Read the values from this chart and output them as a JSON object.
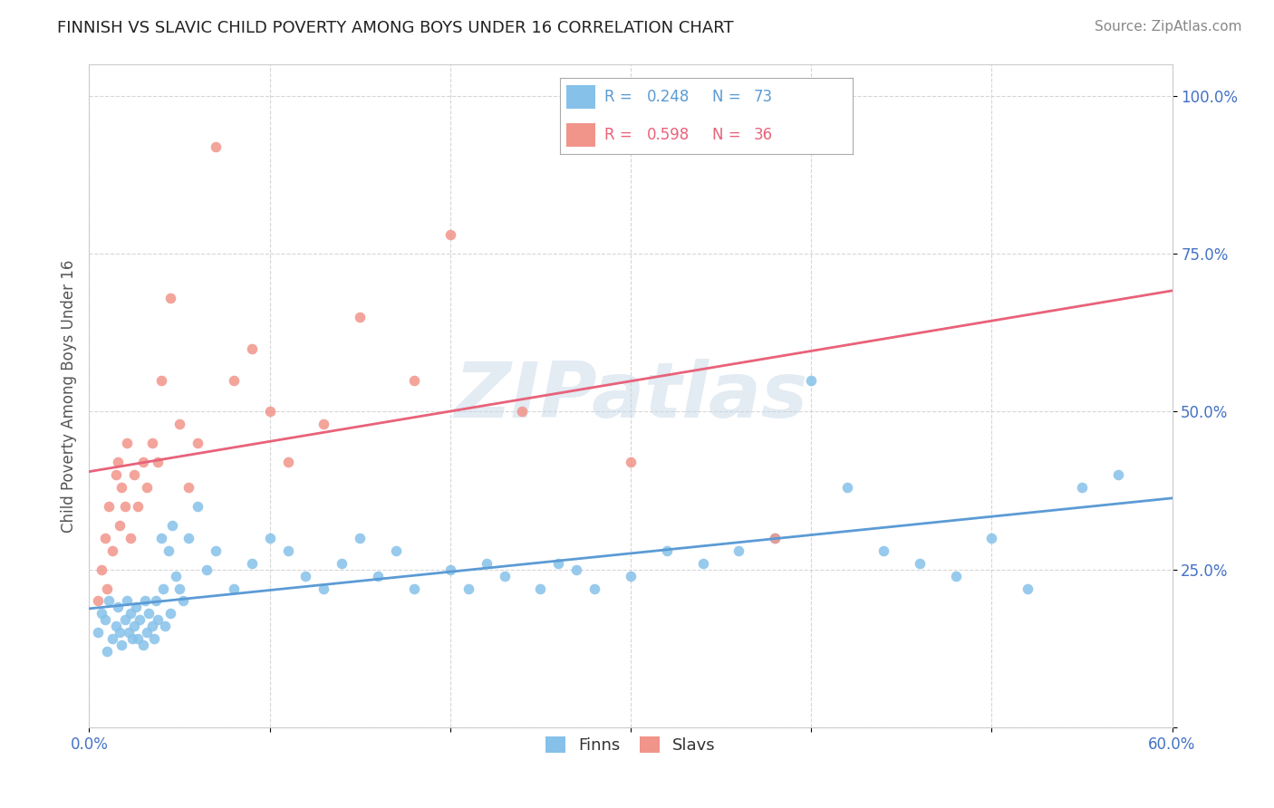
{
  "title": "FINNISH VS SLAVIC CHILD POVERTY AMONG BOYS UNDER 16 CORRELATION CHART",
  "source": "Source: ZipAtlas.com",
  "ylabel": "Child Poverty Among Boys Under 16",
  "xlim": [
    0.0,
    0.6
  ],
  "ylim": [
    0.0,
    1.05
  ],
  "xticks": [
    0.0,
    0.1,
    0.2,
    0.3,
    0.4,
    0.5,
    0.6
  ],
  "xticklabels": [
    "0.0%",
    "",
    "",
    "",
    "",
    "",
    "60.0%"
  ],
  "yticks": [
    0.0,
    0.25,
    0.5,
    0.75,
    1.0
  ],
  "yticklabels": [
    "",
    "25.0%",
    "50.0%",
    "75.0%",
    "100.0%"
  ],
  "finns_R": 0.248,
  "finns_N": 73,
  "slavs_R": 0.598,
  "slavs_N": 36,
  "finns_color": "#85c1e9",
  "slavs_color": "#f1948a",
  "finns_line_color": "#5b9bd5",
  "slavs_line_color": "#e8627a",
  "background_color": "#ffffff",
  "grid_color": "#cccccc",
  "title_color": "#222222",
  "axis_color": "#4472c4",
  "watermark": "ZIPatlas",
  "finns_x": [
    0.005,
    0.007,
    0.009,
    0.01,
    0.011,
    0.013,
    0.015,
    0.016,
    0.017,
    0.018,
    0.02,
    0.021,
    0.022,
    0.023,
    0.024,
    0.025,
    0.026,
    0.027,
    0.028,
    0.03,
    0.031,
    0.032,
    0.033,
    0.035,
    0.036,
    0.037,
    0.038,
    0.04,
    0.041,
    0.042,
    0.044,
    0.045,
    0.046,
    0.048,
    0.05,
    0.052,
    0.055,
    0.06,
    0.065,
    0.07,
    0.08,
    0.09,
    0.1,
    0.11,
    0.12,
    0.13,
    0.14,
    0.15,
    0.16,
    0.17,
    0.18,
    0.2,
    0.21,
    0.22,
    0.23,
    0.25,
    0.26,
    0.27,
    0.28,
    0.3,
    0.32,
    0.34,
    0.36,
    0.38,
    0.4,
    0.42,
    0.44,
    0.46,
    0.48,
    0.5,
    0.52,
    0.55,
    0.57
  ],
  "finns_y": [
    0.15,
    0.18,
    0.17,
    0.12,
    0.2,
    0.14,
    0.16,
    0.19,
    0.15,
    0.13,
    0.17,
    0.2,
    0.15,
    0.18,
    0.14,
    0.16,
    0.19,
    0.14,
    0.17,
    0.13,
    0.2,
    0.15,
    0.18,
    0.16,
    0.14,
    0.2,
    0.17,
    0.3,
    0.22,
    0.16,
    0.28,
    0.18,
    0.32,
    0.24,
    0.22,
    0.2,
    0.3,
    0.35,
    0.25,
    0.28,
    0.22,
    0.26,
    0.3,
    0.28,
    0.24,
    0.22,
    0.26,
    0.3,
    0.24,
    0.28,
    0.22,
    0.25,
    0.22,
    0.26,
    0.24,
    0.22,
    0.26,
    0.25,
    0.22,
    0.24,
    0.28,
    0.26,
    0.28,
    0.3,
    0.55,
    0.38,
    0.28,
    0.26,
    0.24,
    0.3,
    0.22,
    0.38,
    0.4
  ],
  "slavs_x": [
    0.005,
    0.007,
    0.009,
    0.01,
    0.011,
    0.013,
    0.015,
    0.016,
    0.017,
    0.018,
    0.02,
    0.021,
    0.023,
    0.025,
    0.027,
    0.03,
    0.032,
    0.035,
    0.038,
    0.04,
    0.045,
    0.05,
    0.055,
    0.06,
    0.07,
    0.08,
    0.09,
    0.1,
    0.11,
    0.13,
    0.15,
    0.18,
    0.2,
    0.24,
    0.3,
    0.38
  ],
  "slavs_y": [
    0.2,
    0.25,
    0.3,
    0.22,
    0.35,
    0.28,
    0.4,
    0.42,
    0.32,
    0.38,
    0.35,
    0.45,
    0.3,
    0.4,
    0.35,
    0.42,
    0.38,
    0.45,
    0.42,
    0.55,
    0.68,
    0.48,
    0.38,
    0.45,
    0.92,
    0.55,
    0.6,
    0.5,
    0.42,
    0.48,
    0.65,
    0.55,
    0.78,
    0.5,
    0.42,
    0.3
  ]
}
